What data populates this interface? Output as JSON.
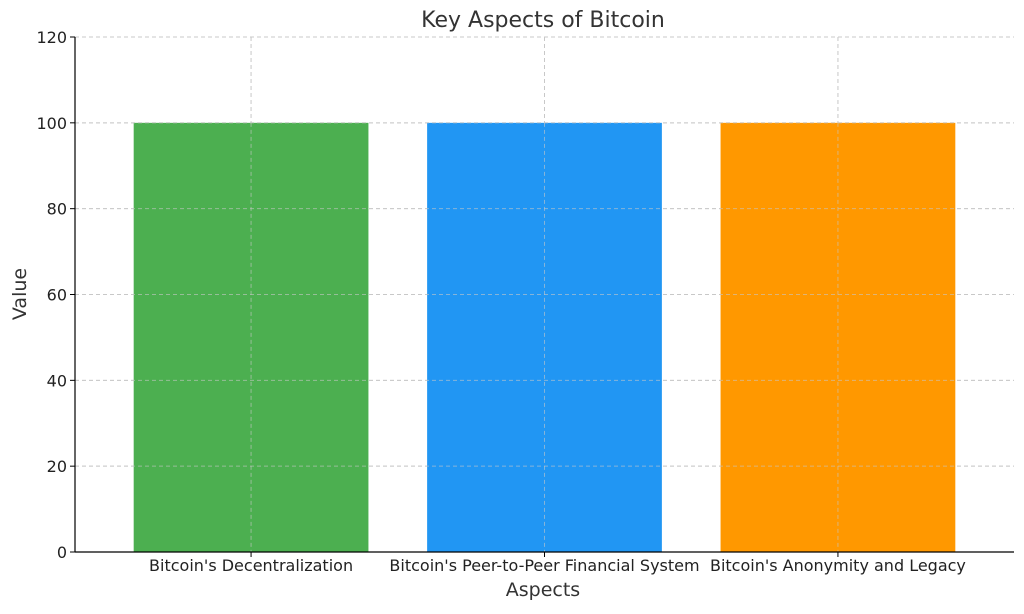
{
  "chart_data": {
    "type": "bar",
    "title": "Key Aspects of Bitcoin",
    "xlabel": "Aspects",
    "ylabel": "Value",
    "categories": [
      "Bitcoin's Decentralization",
      "Bitcoin's Peer-to-Peer Financial System",
      "Bitcoin's Anonymity and Legacy"
    ],
    "values": [
      100,
      100,
      100
    ],
    "colors": [
      "#4caf50",
      "#2196f3",
      "#ff9800"
    ],
    "ylim": [
      0,
      120
    ],
    "yticks": [
      0,
      20,
      40,
      60,
      80,
      100,
      120
    ],
    "grid": true,
    "legend": "none"
  }
}
